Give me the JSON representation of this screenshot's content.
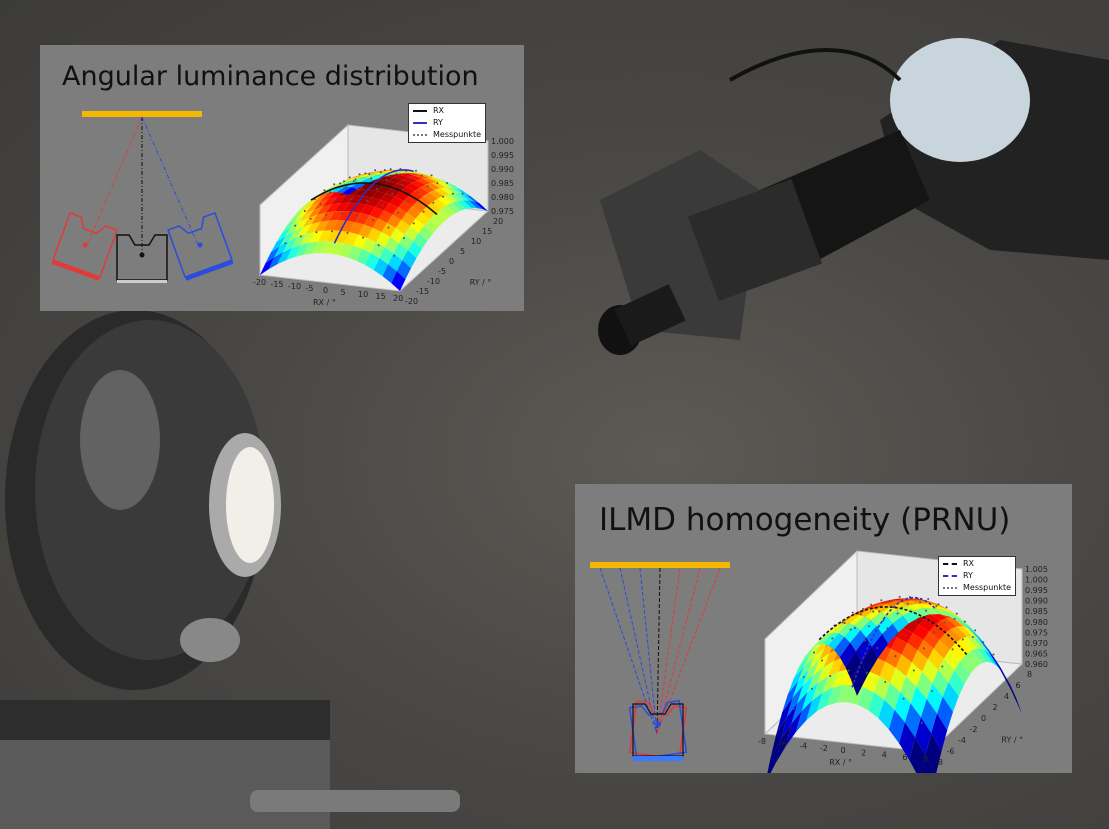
{
  "panels": [
    {
      "title": "Angular luminance distribution"
    },
    {
      "title": "ILMD homogeneity (PRNU)"
    }
  ],
  "colors": {
    "source_bar": "#f5b800",
    "ray_red": "#e03a3a",
    "ray_blue": "#2a4de0",
    "ray_black": "#111111",
    "panel_bg": "#7d7d7d"
  },
  "chart_data": [
    {
      "type": "surface",
      "title": "",
      "xlabel": "RX / °",
      "ylabel": "RY / °",
      "zlabel": "",
      "xlim": [
        -20,
        20
      ],
      "ylim": [
        -20,
        20
      ],
      "zlim": [
        0.975,
        1.0
      ],
      "xticks": [
        "-20",
        "-15",
        "-10",
        "-5",
        "0",
        "5",
        "10",
        "15",
        "20"
      ],
      "yticks": [
        "-20",
        "-15",
        "-10",
        "-5",
        "0",
        "5",
        "10",
        "15",
        "20"
      ],
      "zticks": [
        "0.975",
        "0.980",
        "0.985",
        "0.990",
        "0.995",
        "1.000"
      ],
      "legend": [
        "RX",
        "RY",
        "Messpunkte"
      ],
      "legend_position": "top-right",
      "series_styles": [
        "solid",
        "solid",
        "dots"
      ],
      "peak": 0.996,
      "colormap": "jet"
    },
    {
      "type": "surface",
      "title": "",
      "xlabel": "RX / °",
      "ylabel": "RY / °",
      "zlabel": "",
      "xlim": [
        -8,
        8
      ],
      "ylim": [
        -8,
        8
      ],
      "zlim": [
        0.96,
        1.005
      ],
      "xticks": [
        "-8",
        "-6",
        "-4",
        "-2",
        "0",
        "2",
        "4",
        "6",
        "8"
      ],
      "yticks": [
        "-8",
        "-6",
        "-4",
        "-2",
        "0",
        "2",
        "4",
        "6",
        "8"
      ],
      "zticks": [
        "0.960",
        "0.965",
        "0.970",
        "0.975",
        "0.980",
        "0.985",
        "0.990",
        "0.995",
        "1.000",
        "1.005"
      ],
      "legend": [
        "RX",
        "RY",
        "Messpunkte"
      ],
      "legend_position": "top-right",
      "series_styles": [
        "dashed",
        "dashed",
        "dots"
      ],
      "peak": 1.003,
      "colormap": "jet"
    }
  ]
}
